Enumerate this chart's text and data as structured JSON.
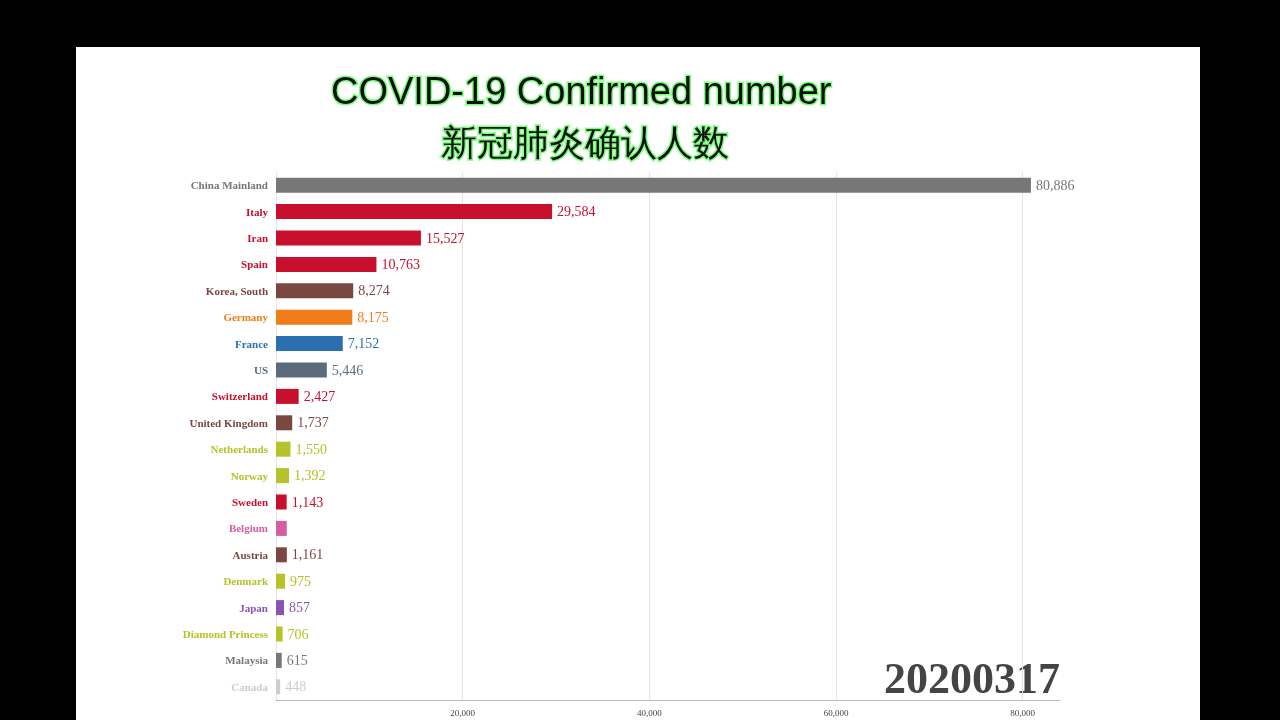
{
  "chart_data": {
    "type": "bar",
    "orientation": "horizontal",
    "title": "COVID-19 Confirmed number",
    "subtitle": "新冠肺炎确认人数",
    "categories": [
      "China Mainland",
      "Italy",
      "Iran",
      "Spain",
      "Korea, South",
      "Germany",
      "France",
      "US",
      "Switzerland",
      "United Kingdom",
      "Netherlands",
      "Norway",
      "Sweden",
      "Belgium",
      "Austria",
      "Denmark",
      "Japan",
      "Diamond Princess",
      "Malaysia",
      "Canada"
    ],
    "values": [
      80886,
      29584,
      15527,
      10763,
      8274,
      8175,
      7152,
      5446,
      2427,
      1737,
      1550,
      1392,
      1143,
      1150,
      1161,
      975,
      857,
      706,
      615,
      448
    ],
    "value_labels": [
      "80,886",
      "29,584",
      "15,527",
      "10,763",
      "8,274",
      "8,175",
      "7,152",
      "5,446",
      "2,427",
      "1,737",
      "1,550",
      "1,392",
      "1,143",
      null,
      "1,161",
      "975",
      "857",
      "706",
      "615",
      "448"
    ],
    "colors": [
      "#777777",
      "#c8102e",
      "#c8102e",
      "#c8102e",
      "#7b4741",
      "#f07d1a",
      "#2c6fb0",
      "#5b6b7b",
      "#c8102e",
      "#7b4741",
      "#b5c22a",
      "#b5c22a",
      "#c8102e",
      "#d85ca0",
      "#7b4741",
      "#b5c22a",
      "#8a55b0",
      "#b5c22a",
      "#777777",
      "#cccccc"
    ],
    "xlim": [
      0,
      84000
    ],
    "xticks": [
      {
        "value": 0,
        "label": null
      },
      {
        "value": 20000,
        "label": "20,000"
      },
      {
        "value": 40000,
        "label": "40,000"
      },
      {
        "value": 60000,
        "label": "60,000"
      },
      {
        "value": 80000,
        "label": "80,000"
      }
    ],
    "grid": "x",
    "annotations": [
      "20200317"
    ]
  }
}
